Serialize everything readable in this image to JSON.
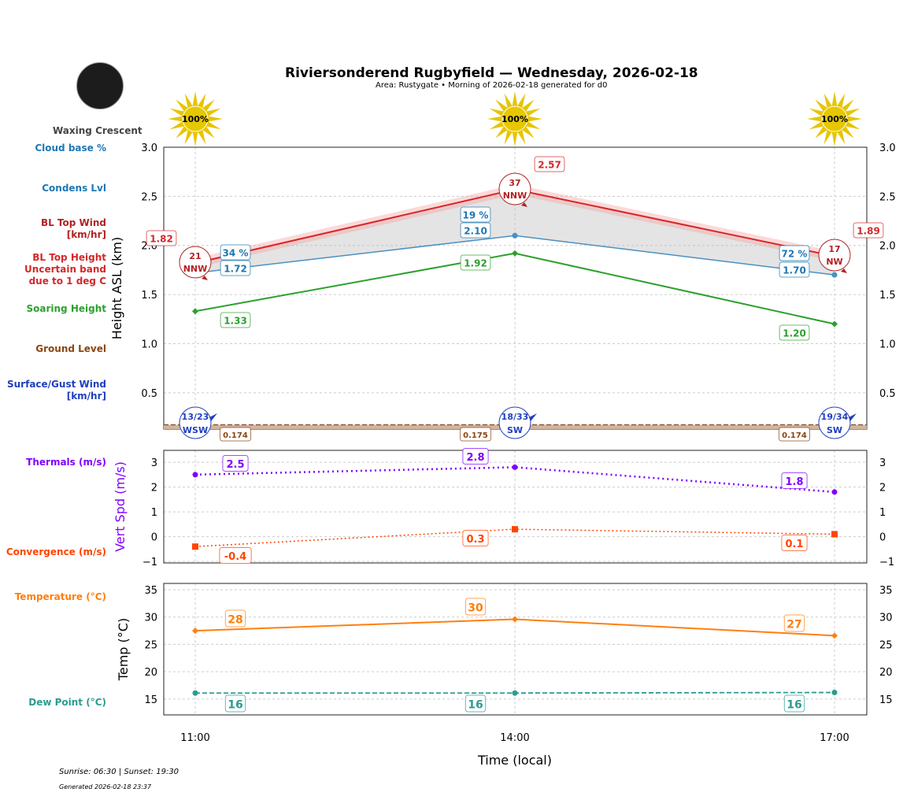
{
  "header": {
    "title": "Riviersonderend Rugbyfield — Wednesday, 2026-02-18",
    "subtitle": "Area: Rustygate • Morning of 2026-02-18 generated for d0",
    "moon_phase": "Waxing Crescent"
  },
  "footer": {
    "sun": "Sunrise: 06:30 | Sunset: 19:30",
    "generated": "Generated 2026-02-18 23:37"
  },
  "legend_labels": [
    {
      "text": "Cloud base %",
      "color": "#1f77b4"
    },
    {
      "text": "Condens Lvl",
      "color": "#1f77b4"
    },
    {
      "text": "BL Top Wind\n[km/hr]",
      "color": "#b22222"
    },
    {
      "text": "BL Top Height\nUncertain band\ndue to 1 deg C",
      "color": "#d62728"
    },
    {
      "text": "Soaring Height",
      "color": "#2ca02c"
    },
    {
      "text": "Ground Level",
      "color": "#8b4513"
    },
    {
      "text": "Surface/Gust Wind\n[km/hr]",
      "color": "#1f3fbf"
    },
    {
      "text": "Thermals (m/s)",
      "color": "#8000ff"
    },
    {
      "text": "Convergence (m/s)",
      "color": "#ff4500"
    },
    {
      "text": "Temperature (°C)",
      "color": "#ff7f0e"
    },
    {
      "text": "Dew Point (°C)",
      "color": "#2a9d8f"
    }
  ],
  "chart_data": {
    "type": "line",
    "x": [
      "11:00",
      "14:00",
      "17:00"
    ],
    "xlabel": "Time (local)",
    "sun": {
      "labels": [
        "100%",
        "100%",
        "100%"
      ],
      "values": [
        100,
        100,
        100
      ]
    },
    "panels": [
      {
        "ylabel": "Height ASL (km)",
        "ylim": [
          0.13,
          3.0
        ],
        "yticks": [
          "0.5",
          "1.0",
          "1.5",
          "2.0",
          "2.5",
          "3.0"
        ],
        "bl_top": [
          1.82,
          2.57,
          1.89
        ],
        "bl_top_labels": [
          "1.82",
          "2.57",
          "1.89"
        ],
        "bl_band": 0.05,
        "condens": [
          1.72,
          2.1,
          1.7
        ],
        "condens_labels": [
          "1.72",
          "2.10",
          "1.70"
        ],
        "cloud_base_pct": [
          "34 %",
          "19 %",
          "72 %"
        ],
        "soaring": [
          1.33,
          1.92,
          1.2
        ],
        "soaring_labels": [
          "1.33",
          "1.92",
          "1.20"
        ],
        "ground": [
          0.174,
          0.175,
          0.174
        ],
        "ground_labels": [
          "0.174",
          "0.175",
          "0.174"
        ],
        "bl_wind": [
          {
            "speed": "21",
            "dir": "NNW"
          },
          {
            "speed": "37",
            "dir": "NNW"
          },
          {
            "speed": "17",
            "dir": "NW"
          }
        ],
        "surface_wind": [
          {
            "speed": "13/23",
            "dir": "WSW"
          },
          {
            "speed": "18/33",
            "dir": "SW"
          },
          {
            "speed": "19/34",
            "dir": "SW"
          }
        ]
      },
      {
        "ylabel": "Vert Spd (m/s)",
        "ylim": [
          -1.06,
          3.48
        ],
        "yticks": [
          "−1",
          "0",
          "1",
          "2",
          "3"
        ],
        "thermals": [
          2.5,
          2.8,
          1.8
        ],
        "thermal_labels": [
          "2.5",
          "2.8",
          "1.8"
        ],
        "convergence": [
          -0.4,
          0.3,
          0.1
        ],
        "convergence_labels": [
          "-0.4",
          "0.3",
          "0.1"
        ]
      },
      {
        "ylabel": "Temp (°C)",
        "ylim": [
          12.1,
          36.15
        ],
        "yticks": [
          "15",
          "20",
          "25",
          "30",
          "35"
        ],
        "temperature": [
          27.5,
          29.6,
          26.6
        ],
        "temperature_labels": [
          "28",
          "30",
          "27"
        ],
        "dewpoint": [
          16.1,
          16.1,
          16.2
        ],
        "dewpoint_labels": [
          "16",
          "16",
          "16"
        ]
      }
    ]
  }
}
